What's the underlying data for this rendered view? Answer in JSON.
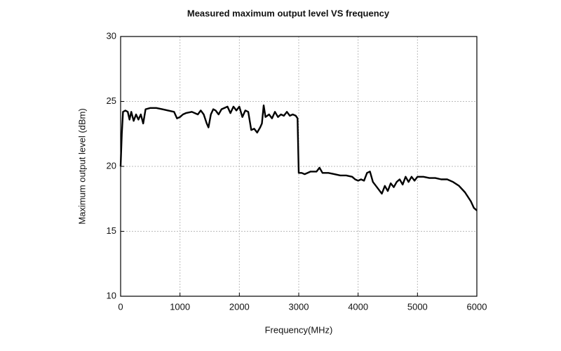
{
  "chart_data": {
    "type": "line",
    "title": "Measured maximum output level VS frequency",
    "xlabel": "Frequency(MHz)",
    "ylabel": "Maximum output level (dBm)",
    "color": "#000000",
    "grid": true,
    "xlim": [
      0,
      6000
    ],
    "xticks": [
      0,
      1000,
      2000,
      3000,
      4000,
      5000,
      6000
    ],
    "ylim": [
      10,
      30
    ],
    "yticks": [
      10,
      15,
      20,
      25,
      30
    ],
    "x": [
      0,
      20,
      40,
      80,
      120,
      150,
      180,
      220,
      260,
      300,
      340,
      380,
      420,
      500,
      600,
      700,
      800,
      900,
      950,
      1000,
      1050,
      1100,
      1200,
      1300,
      1350,
      1400,
      1450,
      1480,
      1520,
      1560,
      1600,
      1650,
      1700,
      1800,
      1850,
      1900,
      1950,
      2000,
      2050,
      2100,
      2150,
      2200,
      2250,
      2300,
      2350,
      2380,
      2410,
      2440,
      2500,
      2550,
      2600,
      2650,
      2700,
      2750,
      2800,
      2850,
      2900,
      2950,
      2980,
      3000,
      3050,
      3100,
      3200,
      3300,
      3350,
      3400,
      3500,
      3600,
      3700,
      3800,
      3900,
      3950,
      4000,
      4050,
      4100,
      4150,
      4200,
      4250,
      4300,
      4350,
      4400,
      4450,
      4500,
      4550,
      4600,
      4650,
      4700,
      4750,
      4800,
      4850,
      4900,
      4950,
      5000,
      5100,
      5200,
      5300,
      5400,
      5500,
      5600,
      5700,
      5800,
      5900,
      5950,
      6000
    ],
    "values": [
      20.0,
      22.5,
      24.2,
      24.3,
      24.2,
      23.6,
      24.2,
      23.5,
      24.0,
      23.6,
      24.0,
      23.3,
      24.4,
      24.5,
      24.5,
      24.4,
      24.3,
      24.2,
      23.7,
      23.8,
      24.0,
      24.1,
      24.2,
      24.0,
      24.3,
      24.0,
      23.3,
      23.0,
      24.0,
      24.4,
      24.3,
      24.0,
      24.4,
      24.6,
      24.1,
      24.6,
      24.3,
      24.6,
      23.8,
      24.3,
      24.2,
      22.8,
      22.9,
      22.6,
      23.0,
      23.3,
      24.7,
      23.8,
      24.0,
      23.7,
      24.2,
      23.8,
      24.0,
      23.9,
      24.2,
      23.9,
      24.0,
      23.9,
      23.7,
      19.5,
      19.5,
      19.4,
      19.6,
      19.6,
      19.9,
      19.5,
      19.5,
      19.4,
      19.3,
      19.3,
      19.2,
      19.0,
      18.9,
      19.0,
      18.9,
      19.5,
      19.6,
      18.8,
      18.5,
      18.2,
      17.9,
      18.5,
      18.1,
      18.7,
      18.4,
      18.8,
      19.0,
      18.6,
      19.2,
      18.8,
      19.2,
      18.9,
      19.2,
      19.2,
      19.1,
      19.1,
      19.0,
      19.0,
      18.8,
      18.5,
      18.0,
      17.3,
      16.8,
      16.6
    ]
  }
}
